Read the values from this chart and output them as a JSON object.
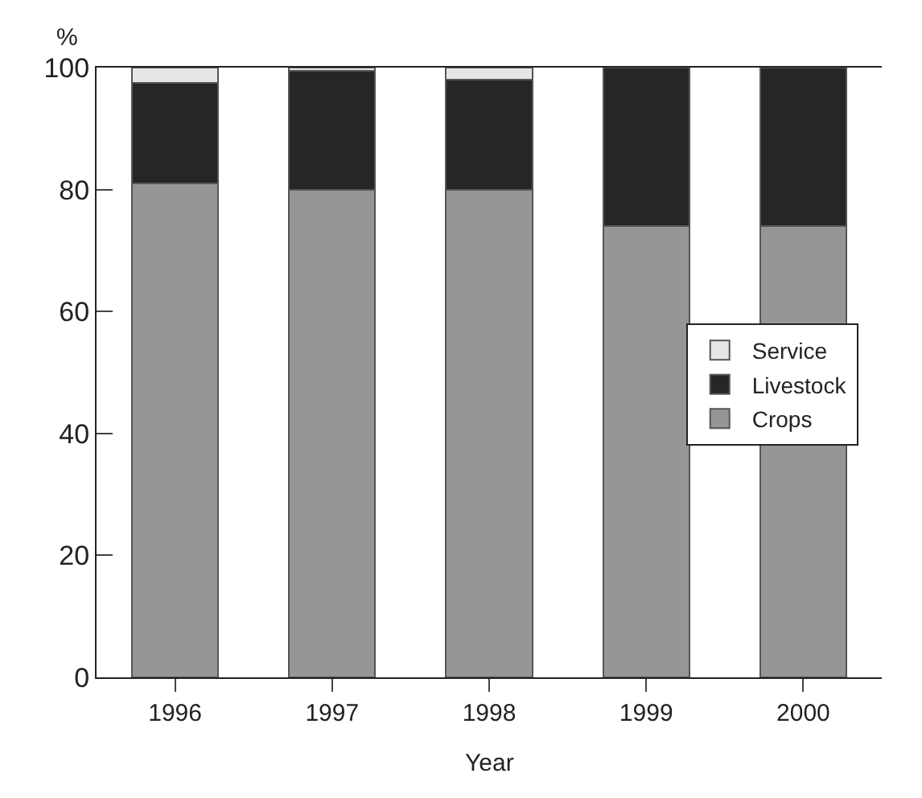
{
  "chart_data": {
    "type": "bar",
    "stacked": true,
    "ylabel": "%",
    "xlabel": "Year",
    "categories": [
      "1996",
      "1997",
      "1998",
      "1999",
      "2000"
    ],
    "series": [
      {
        "name": "Crops",
        "color": "#969696",
        "values": [
          81,
          80,
          80,
          74,
          74
        ]
      },
      {
        "name": "Livestock",
        "color": "#262626",
        "values": [
          16.5,
          19.5,
          18,
          26,
          26
        ]
      },
      {
        "name": "Service",
        "color": "#e6e6e6",
        "values": [
          2.5,
          0.5,
          2,
          null,
          null
        ]
      }
    ],
    "ylim": [
      0,
      100
    ],
    "yticks": [
      0,
      20,
      40,
      60,
      80,
      100
    ],
    "legend": "right"
  }
}
